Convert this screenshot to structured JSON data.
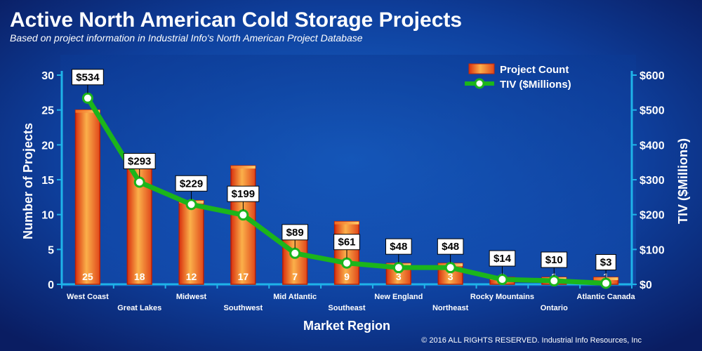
{
  "chart_data": {
    "type": "bar+line",
    "title": "Active North American Cold Storage Projects",
    "subtitle": "Based on project information in Industrial Info's North American Project Database",
    "xlabel": "Market Region",
    "ylabel_left": "Number of Projects",
    "ylabel_right": "TIV ($Millions)",
    "categories": [
      "West Coast",
      "Great Lakes",
      "Midwest",
      "Southwest",
      "Mid Atlantic",
      "Southeast",
      "New England",
      "Northeast",
      "Rocky Mountains",
      "Ontario",
      "Atlantic Canada"
    ],
    "series": [
      {
        "name": "Project Count",
        "type": "bar",
        "axis": "left",
        "values": [
          25,
          18,
          12,
          17,
          7,
          9,
          3,
          3,
          1,
          1,
          1
        ]
      },
      {
        "name": "TIV ($Millions)",
        "type": "line",
        "axis": "right",
        "values": [
          534,
          293,
          229,
          199,
          89,
          61,
          48,
          48,
          14,
          10,
          3
        ]
      }
    ],
    "bar_labels": [
      "25",
      "18",
      "12",
      "17",
      "7",
      "9",
      "3",
      "3",
      "1",
      "1",
      "1"
    ],
    "line_labels": [
      "$534",
      "$293",
      "$229",
      "$199",
      "$89",
      "$61",
      "$48",
      "$48",
      "$14",
      "$10",
      "$3"
    ],
    "ylim_left": [
      0,
      30
    ],
    "yticks_left": [
      "0",
      "5",
      "10",
      "15",
      "20",
      "25",
      "30"
    ],
    "ylim_right": [
      0,
      600
    ],
    "yticks_right": [
      "$0",
      "$100",
      "$200",
      "$300",
      "$400",
      "$500",
      "$600"
    ],
    "legend": {
      "position": "top-right",
      "items": [
        "Project Count",
        "TIV ($Millions)"
      ]
    },
    "grid": false,
    "colors": {
      "background": "#0a1a5c",
      "plot_background": "#0f45a8",
      "axis": "#1fb3e8",
      "bar": "#f2741c",
      "bar_light": "#fbb04a",
      "bar_dark": "#d8300e",
      "line": "#1bb51b",
      "marker_fill": "#ffffff",
      "text": "#ffffff"
    }
  },
  "footer": {
    "copyright": "© 2016 ALL RIGHTS RESERVED. Industrial Info Resources, Inc"
  }
}
